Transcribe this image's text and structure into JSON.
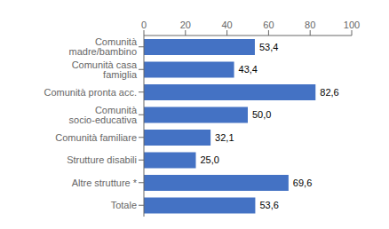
{
  "chart_data": {
    "type": "bar",
    "orientation": "horizontal",
    "categories": [
      "Comunità madre/bambino",
      "Comunità casa famiglia",
      "Comunità pronta acc.",
      "Comunità socio-educativa",
      "Comunità familiare",
      "Strutture disabili",
      "Altre strutture *",
      "Totale"
    ],
    "values": [
      53.4,
      43.4,
      82.6,
      50.0,
      32.1,
      25.0,
      69.6,
      53.6
    ],
    "value_labels": [
      "53,4",
      "43,4",
      "82,6",
      "50,0",
      "32,1",
      "25,0",
      "69,6",
      "53,6"
    ],
    "data_labels": true,
    "color": "#4472C4",
    "xlim": [
      0,
      100
    ],
    "xticks": [
      0,
      20,
      40,
      60,
      80,
      100
    ]
  }
}
